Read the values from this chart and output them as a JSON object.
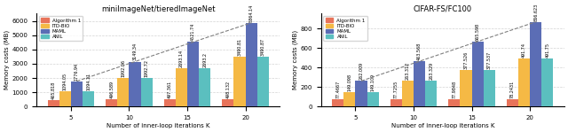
{
  "left": {
    "title": "miniImageNet/tieredImageNet",
    "xlabel": "Number of inner-loop iterations K",
    "ylabel": "Memory costs (MB)",
    "K": [
      5,
      10,
      15,
      20
    ],
    "alg1": [
      465.818,
      496.589,
      497.361,
      498.132
    ],
    "itdbio": [
      1094.05,
      1992.06,
      2693.14,
      3490.81
    ],
    "maml": [
      1776.94,
      3149.34,
      4521.74,
      5864.14
    ],
    "anil": [
      1094.11,
      1992.72,
      2693.2,
      3490.87
    ],
    "alg1_labels": [
      "465.818",
      "496.589",
      "497.361",
      "498.132"
    ],
    "itdbio_labels": [
      "1094.05",
      "1992.06",
      "2693.14",
      "3490.81"
    ],
    "maml_labels": [
      "1776.94",
      "3149.34",
      "4521.74",
      "5864.14"
    ],
    "anil_labels": [
      "1094.11",
      "1992.72",
      "2693.2",
      "3490.87"
    ],
    "ylim": [
      0,
      6500
    ],
    "yticks": [
      0,
      1000,
      2000,
      3000,
      4000,
      5000,
      6000
    ]
  },
  "right": {
    "title": "CIFAR-FS/FC100",
    "xlabel": "Number of inner-loop iterations K",
    "ylabel": "Memory costs (MB)",
    "K": [
      5,
      10,
      15,
      20
    ],
    "alg1": [
      77.4667,
      77.7255,
      77.9848,
      78.2431
    ],
    "itdbio": [
      149.098,
      263.312,
      377.526,
      491.74
    ],
    "maml": [
      262.009,
      463.568,
      665.598,
      866.623
    ],
    "anil": [
      149.109,
      263.329,
      377.537,
      491.75
    ],
    "alg1_labels": [
      "77.4667",
      "77.7255",
      "77.9848",
      "78.2431"
    ],
    "itdbio_labels": [
      "149.098",
      "263.312",
      "377.526",
      "491.74"
    ],
    "maml_labels": [
      "262.009",
      "463.568",
      "665.598",
      "866.623"
    ],
    "anil_labels": [
      "149.109",
      "263.329",
      "377.537",
      "491.75"
    ],
    "ylim": [
      0,
      950
    ],
    "yticks": [
      0,
      200,
      400,
      600,
      800
    ]
  },
  "colors": {
    "alg1": "#E8735A",
    "itdbio": "#F5B945",
    "maml": "#5B6DB5",
    "anil": "#5BBFBF"
  },
  "legend_labels": [
    "Algorithm 1",
    "ITD-BIO",
    "MAML",
    "ANIL"
  ]
}
